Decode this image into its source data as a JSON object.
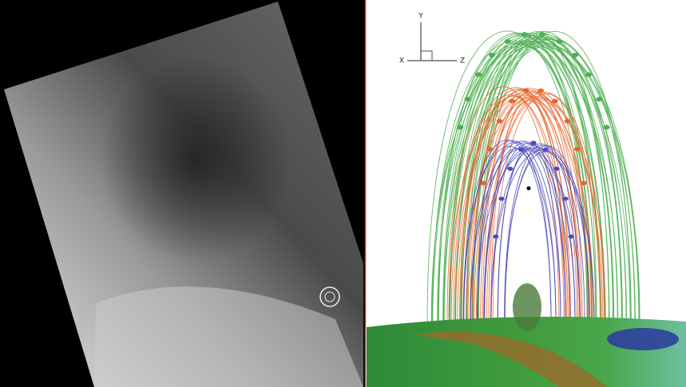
{
  "axes_triad": {
    "labels": {
      "y": "Y",
      "x": "X",
      "z": "Z"
    }
  }
}
